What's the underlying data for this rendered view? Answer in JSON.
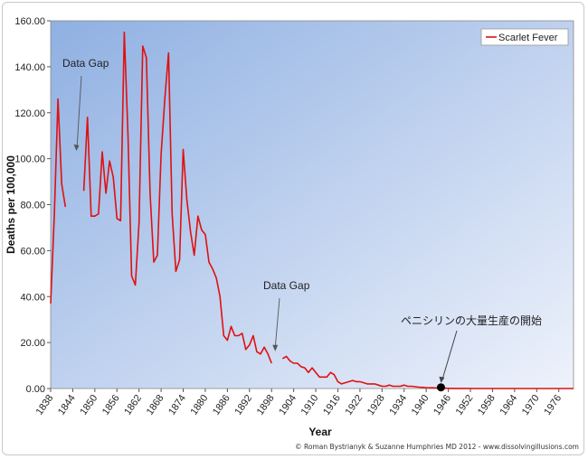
{
  "chart_data": {
    "type": "line",
    "xlabel": "Year",
    "ylabel": "Deaths per 100,000",
    "xlim": [
      1838,
      1980
    ],
    "ylim": [
      0,
      160
    ],
    "y_ticks": [
      "0.00",
      "20.00",
      "40.00",
      "60.00",
      "80.00",
      "100.00",
      "120.00",
      "140.00",
      "160.00"
    ],
    "x_ticks": [
      "1838",
      "1844",
      "1850",
      "1856",
      "1862",
      "1868",
      "1874",
      "1880",
      "1886",
      "1892",
      "1898",
      "1904",
      "1910",
      "1916",
      "1922",
      "1928",
      "1934",
      "1940",
      "1946",
      "1952",
      "1958",
      "1964",
      "1970",
      "1976"
    ],
    "legend": {
      "position": "top-right",
      "entries": [
        "Scarlet Fever"
      ]
    },
    "colors": {
      "series": "#e01010",
      "plot_bg_start": "#8fb0e2",
      "plot_bg_end": "#eef2fb",
      "marker": "#000000"
    },
    "series": [
      {
        "name": "Scarlet Fever",
        "segments": [
          [
            [
              1838,
              37
            ],
            [
              1839,
              76
            ],
            [
              1840,
              126
            ],
            [
              1841,
              89
            ],
            [
              1842,
              79
            ]
          ],
          [
            [
              1847,
              86
            ],
            [
              1848,
              118
            ],
            [
              1849,
              75
            ],
            [
              1850,
              75
            ],
            [
              1851,
              76
            ],
            [
              1852,
              103
            ],
            [
              1853,
              85
            ],
            [
              1854,
              99
            ],
            [
              1855,
              92
            ],
            [
              1856,
              74
            ],
            [
              1857,
              73
            ],
            [
              1858,
              155
            ],
            [
              1859,
              110
            ],
            [
              1860,
              49
            ],
            [
              1861,
              45
            ],
            [
              1862,
              72
            ],
            [
              1863,
              149
            ],
            [
              1864,
              144
            ],
            [
              1865,
              85
            ],
            [
              1866,
              55
            ],
            [
              1867,
              58
            ],
            [
              1868,
              102
            ],
            [
              1869,
              126
            ],
            [
              1870,
              146
            ],
            [
              1871,
              76
            ],
            [
              1872,
              51
            ],
            [
              1873,
              56
            ],
            [
              1874,
              104
            ],
            [
              1875,
              82
            ],
            [
              1876,
              68
            ],
            [
              1877,
              58
            ],
            [
              1878,
              75
            ],
            [
              1879,
              69
            ],
            [
              1880,
              67
            ],
            [
              1881,
              55
            ],
            [
              1882,
              52
            ],
            [
              1883,
              48
            ],
            [
              1884,
              40
            ],
            [
              1885,
              23
            ],
            [
              1886,
              21
            ],
            [
              1887,
              27
            ],
            [
              1888,
              23
            ],
            [
              1889,
              23
            ],
            [
              1890,
              24
            ],
            [
              1891,
              17
            ],
            [
              1892,
              19
            ],
            [
              1893,
              23
            ],
            [
              1894,
              16
            ],
            [
              1895,
              15
            ],
            [
              1896,
              18
            ],
            [
              1897,
              15
            ],
            [
              1898,
              11
            ]
          ],
          [
            [
              1901,
              13
            ],
            [
              1902,
              14
            ],
            [
              1903,
              12
            ],
            [
              1904,
              11
            ],
            [
              1905,
              11
            ],
            [
              1906,
              9.5
            ],
            [
              1907,
              9
            ],
            [
              1908,
              7
            ],
            [
              1909,
              9
            ],
            [
              1910,
              7
            ],
            [
              1911,
              5
            ],
            [
              1912,
              5
            ],
            [
              1913,
              5
            ],
            [
              1914,
              7
            ],
            [
              1915,
              6
            ],
            [
              1916,
              3
            ],
            [
              1917,
              2
            ],
            [
              1918,
              2.5
            ],
            [
              1919,
              3
            ],
            [
              1920,
              3.5
            ],
            [
              1921,
              3
            ],
            [
              1922,
              3
            ],
            [
              1923,
              2.5
            ],
            [
              1924,
              2
            ],
            [
              1925,
              2
            ],
            [
              1926,
              2
            ],
            [
              1927,
              1.5
            ],
            [
              1928,
              1
            ],
            [
              1929,
              1
            ],
            [
              1930,
              1.5
            ],
            [
              1931,
              1
            ],
            [
              1932,
              1
            ],
            [
              1933,
              1
            ],
            [
              1934,
              1.5
            ],
            [
              1935,
              1
            ],
            [
              1936,
              1
            ],
            [
              1937,
              0.8
            ],
            [
              1938,
              0.6
            ],
            [
              1939,
              0.5
            ],
            [
              1940,
              0.4
            ],
            [
              1941,
              0.3
            ],
            [
              1942,
              0.3
            ],
            [
              1943,
              0.2
            ],
            [
              1944,
              0.15
            ],
            [
              1945,
              0.1
            ],
            [
              1946,
              0.08
            ],
            [
              1947,
              0.05
            ],
            [
              1948,
              0.04
            ],
            [
              1950,
              0.02
            ],
            [
              1955,
              0.01
            ],
            [
              1960,
              0
            ],
            [
              1965,
              0
            ],
            [
              1970,
              0
            ],
            [
              1976,
              0
            ],
            [
              1980,
              0
            ]
          ]
        ]
      }
    ],
    "annotations": [
      {
        "text": "Data Gap",
        "x": 1845,
        "y": 105
      },
      {
        "text": "Data Gap",
        "x": 1898,
        "y": 17
      },
      {
        "text": "ペニシリンの大量生産の開始",
        "x": 1944,
        "y": 0.5
      }
    ],
    "penicillin_marker": {
      "x": 1944,
      "y": 0.5
    },
    "credit": "© Roman Bystrianyk & Suzanne Humphries MD 2012 - www.dissolvingillusions.com"
  }
}
